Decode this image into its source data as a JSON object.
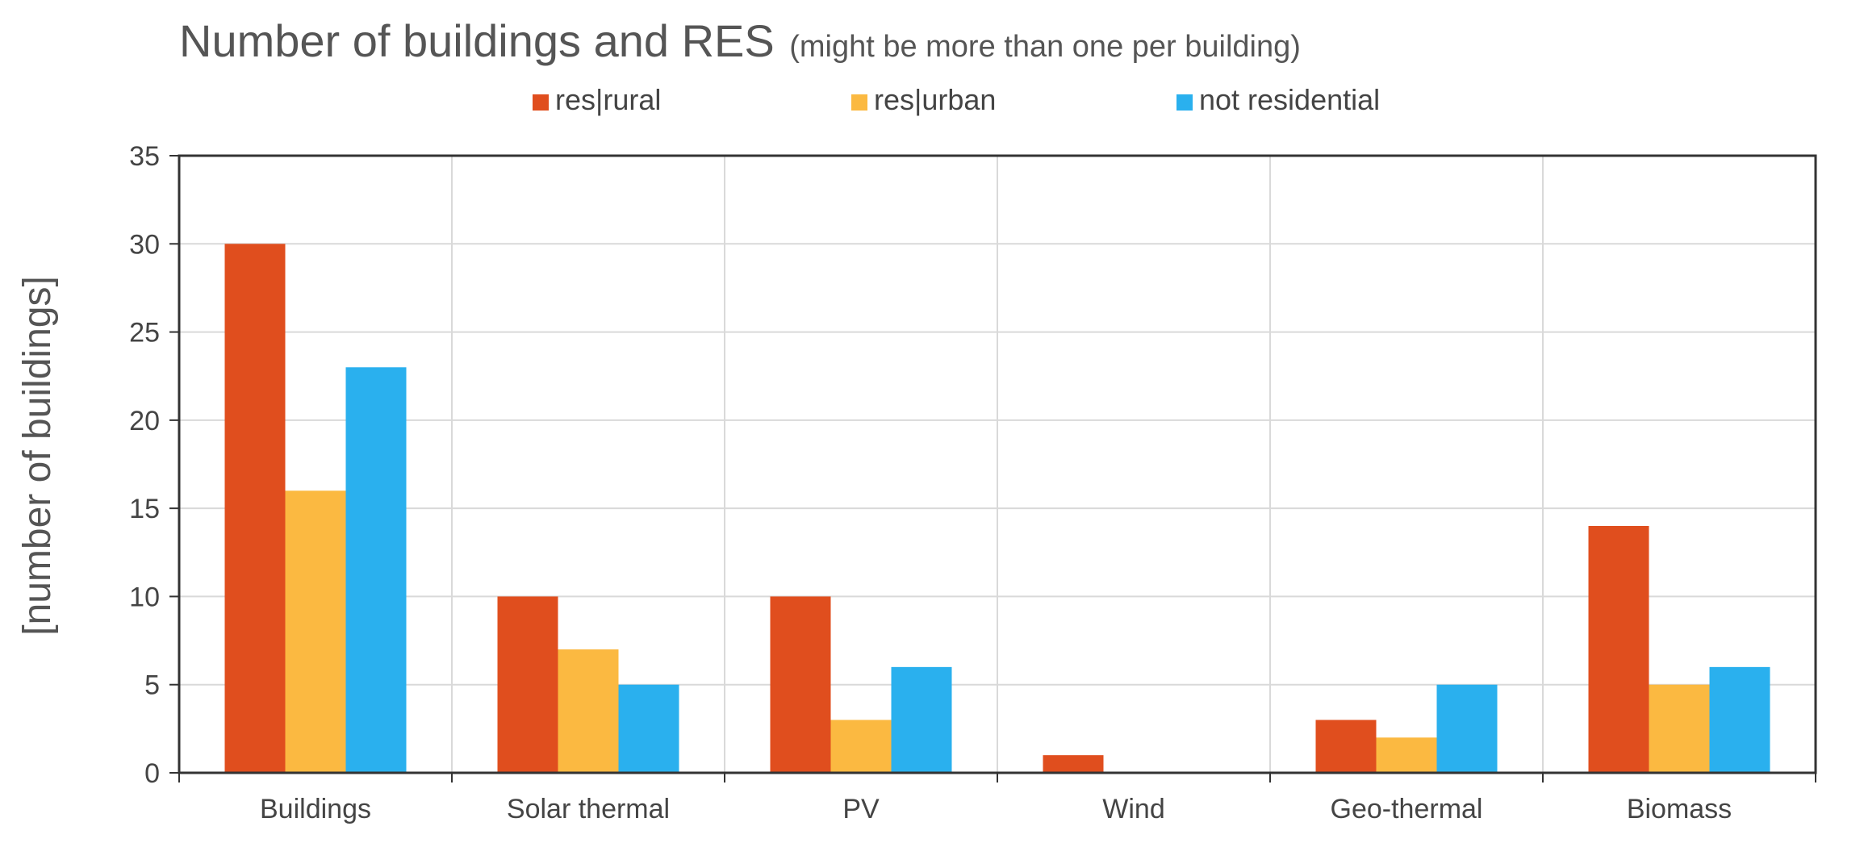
{
  "chart_data": {
    "type": "bar",
    "title": "Number of buildings and RES",
    "subtitle": "(might be more than one per building)",
    "xlabel": "",
    "ylabel": "[number of buildings]",
    "categories": [
      "Buildings",
      "Solar thermal",
      "PV",
      "Wind",
      "Geo-thermal",
      "Biomass"
    ],
    "series": [
      {
        "name": "res|rural",
        "color": "#E04E1E",
        "values": [
          30,
          10,
          10,
          1,
          3,
          14
        ]
      },
      {
        "name": "res|urban",
        "color": "#FBB941",
        "values": [
          16,
          7,
          3,
          0,
          2,
          5
        ]
      },
      {
        "name": "not residential",
        "color": "#2AB0EE",
        "values": [
          23,
          5,
          6,
          0,
          5,
          6
        ]
      }
    ],
    "ylim": [
      0,
      35
    ],
    "yticks": [
      0,
      5,
      10,
      15,
      20,
      25,
      30,
      35
    ],
    "grid": true,
    "legend": "top"
  }
}
